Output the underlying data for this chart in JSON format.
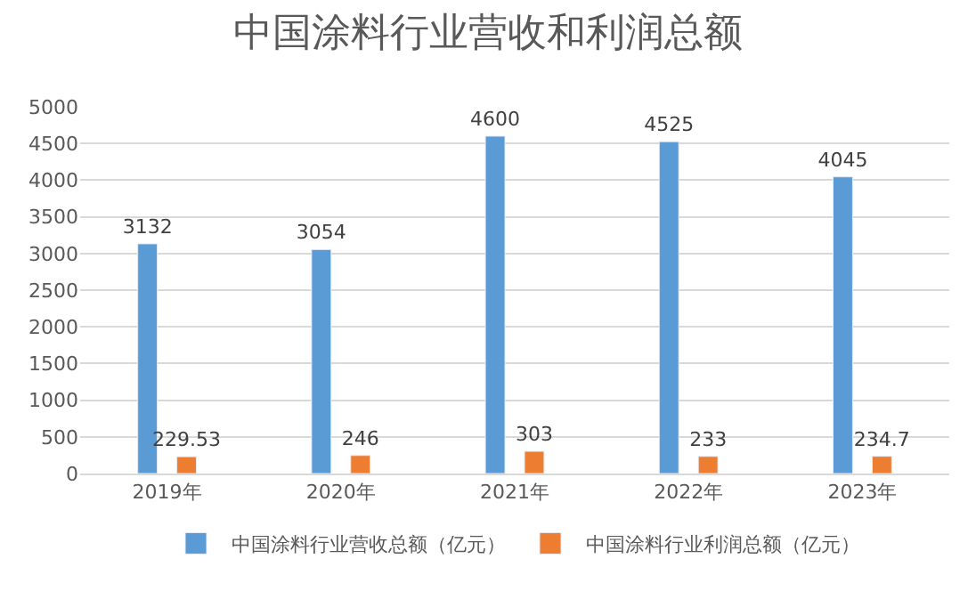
{
  "chart_data": {
    "type": "bar",
    "title": "中国涂料行业营收和利润总额",
    "categories": [
      "2019年",
      "2020年",
      "2021年",
      "2022年",
      "2023年"
    ],
    "series": [
      {
        "name": "中国涂料行业营收总额（亿元）",
        "color": "#5b9bd5",
        "values": [
          3132,
          3054,
          4600,
          4525,
          4045
        ]
      },
      {
        "name": "中国涂料行业利润总额（亿元）",
        "color": "#ed7d31",
        "values": [
          229.53,
          246,
          303,
          233,
          234.7
        ]
      }
    ],
    "ylim": [
      0,
      5000
    ],
    "yticks": [
      0,
      500,
      1000,
      1500,
      2000,
      2500,
      3000,
      3500,
      4000,
      4500,
      5000
    ],
    "grid": "y",
    "legend": "bottom",
    "data_labels": true
  }
}
